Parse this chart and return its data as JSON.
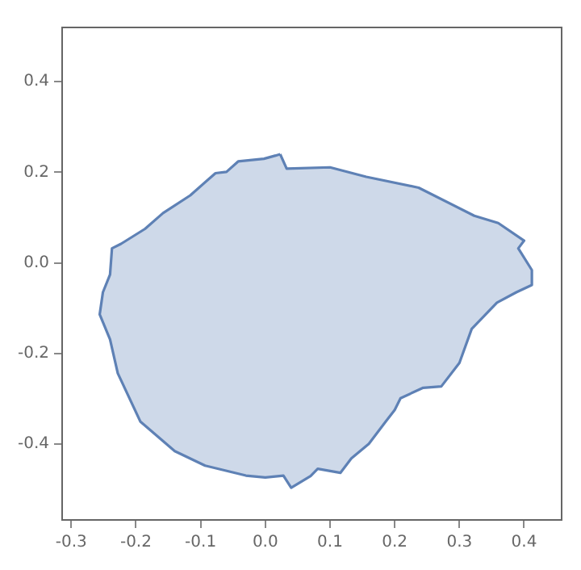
{
  "chart_data": {
    "type": "area",
    "grid": false,
    "legend": false,
    "xlim": [
      -0.314,
      0.458
    ],
    "ylim": [
      -0.568,
      0.52
    ],
    "xticks": [
      -0.3,
      -0.2,
      -0.1,
      {
        "value": 0,
        "label": "0.0"
      },
      0.1,
      0.2,
      0.3,
      0.4
    ],
    "yticks": [
      -0.4,
      -0.2,
      {
        "value": 0,
        "label": "0.0"
      },
      0.2,
      0.4
    ],
    "series": [
      {
        "color": "#5e81b5",
        "x": [
          0.023,
          0.033,
          0.1,
          0.156,
          0.237,
          0.323,
          0.36,
          0.4,
          0.391,
          0.412,
          0.412,
          0.388,
          0.358,
          0.319,
          0.3,
          0.272,
          0.244,
          0.209,
          0.2,
          0.186,
          0.16,
          0.133,
          0.116,
          0.081,
          0.07,
          0.04,
          0.028,
          0,
          -0.03,
          -0.093,
          -0.14,
          -0.193,
          -0.228,
          -0.24,
          -0.256,
          -0.251,
          -0.24,
          -0.237,
          -0.223,
          -0.186,
          -0.158,
          -0.116,
          -0.077,
          -0.06,
          -0.042,
          -0.002,
          0.016,
          0.023
        ],
        "values": [
          0.24,
          0.208,
          0.211,
          0.19,
          0.166,
          0.104,
          0.088,
          0.049,
          0.032,
          -0.016,
          -0.049,
          -0.065,
          -0.088,
          -0.146,
          -0.221,
          -0.273,
          -0.276,
          -0.299,
          -0.325,
          -0.351,
          -0.4,
          -0.432,
          -0.464,
          -0.455,
          -0.471,
          -0.497,
          -0.47,
          -0.474,
          -0.47,
          -0.448,
          -0.416,
          -0.351,
          -0.244,
          -0.169,
          -0.114,
          -0.065,
          -0.026,
          0.032,
          0.042,
          0.075,
          0.11,
          0.149,
          0.198,
          0.201,
          0.224,
          0.23,
          0.237,
          0.24
        ]
      }
    ]
  }
}
